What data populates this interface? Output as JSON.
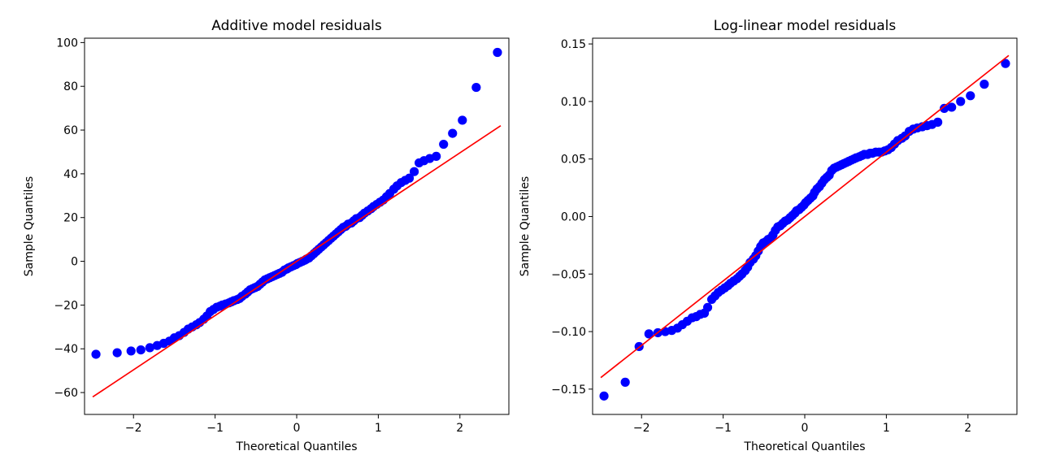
{
  "chart_data": [
    {
      "type": "scatter",
      "title": "Additive model residuals",
      "xlabel": "Theoretical Quantiles",
      "ylabel": "Sample Quantiles",
      "xlim": [
        -2.6,
        2.6
      ],
      "ylim": [
        -70,
        102
      ],
      "xticks": [
        -2,
        -1,
        0,
        1,
        2
      ],
      "xtick_labels": [
        "−2",
        "−1",
        "0",
        "1",
        "2"
      ],
      "yticks": [
        -60,
        -40,
        -20,
        0,
        20,
        40,
        60,
        80,
        100
      ],
      "ytick_labels": [
        "−60",
        "−40",
        "−20",
        "0",
        "20",
        "40",
        "60",
        "80",
        "100"
      ],
      "points": {
        "x": [
          -2.46,
          -2.2,
          -2.03,
          -1.91,
          -1.8,
          -1.71,
          -1.63,
          -1.56,
          -1.5,
          -1.44,
          -1.38,
          -1.33,
          -1.28,
          -1.23,
          -1.19,
          -1.14,
          -1.1,
          -1.06,
          -1.02,
          -0.98,
          -0.94,
          -0.91,
          -0.87,
          -0.83,
          -0.8,
          -0.77,
          -0.73,
          -0.7,
          -0.67,
          -0.63,
          -0.6,
          -0.57,
          -0.54,
          -0.51,
          -0.48,
          -0.45,
          -0.42,
          -0.39,
          -0.36,
          -0.33,
          -0.3,
          -0.27,
          -0.24,
          -0.21,
          -0.18,
          -0.15,
          -0.12,
          -0.1,
          -0.07,
          -0.04,
          -0.01,
          0.01,
          0.04,
          0.07,
          0.1,
          0.12,
          0.15,
          0.18,
          0.21,
          0.24,
          0.27,
          0.3,
          0.33,
          0.36,
          0.39,
          0.42,
          0.45,
          0.48,
          0.51,
          0.54,
          0.57,
          0.6,
          0.63,
          0.67,
          0.7,
          0.73,
          0.77,
          0.8,
          0.83,
          0.87,
          0.91,
          0.94,
          0.98,
          1.02,
          1.06,
          1.1,
          1.14,
          1.19,
          1.23,
          1.28,
          1.33,
          1.38,
          1.44,
          1.5,
          1.56,
          1.63,
          1.71,
          1.8,
          1.91,
          2.03,
          2.2,
          2.46
        ],
        "y": [
          -42.5,
          -41.8,
          -41,
          -40.5,
          -39.5,
          -38.5,
          -37.5,
          -36.5,
          -35,
          -34,
          -32.5,
          -31,
          -30,
          -29,
          -28,
          -26.5,
          -25,
          -23,
          -22,
          -21,
          -20.5,
          -20,
          -19.5,
          -19,
          -18.5,
          -18,
          -17.5,
          -17,
          -16,
          -15,
          -14,
          -13,
          -12.5,
          -12,
          -11.5,
          -10.5,
          -9.5,
          -8.5,
          -8,
          -7.5,
          -7,
          -6.5,
          -6,
          -5.5,
          -5,
          -4,
          -3.5,
          -3,
          -2.5,
          -2,
          -1.5,
          -1,
          -0.5,
          0,
          0.5,
          1,
          1.5,
          2.5,
          3.5,
          4.5,
          5.5,
          6.5,
          7.5,
          8.5,
          9.5,
          10.5,
          11.5,
          12.5,
          13.5,
          14.5,
          15.5,
          16,
          17,
          17.5,
          18.5,
          19.5,
          20,
          21,
          22,
          23,
          24,
          25,
          26,
          27,
          28,
          29.5,
          31,
          33,
          34.5,
          36,
          37,
          38,
          41,
          45,
          46,
          47,
          48,
          53.5,
          58.5,
          64.5,
          79.5,
          95.5
        ]
      },
      "reference_line": {
        "x": [
          -2.5,
          2.5
        ],
        "y": [
          -62,
          62
        ]
      },
      "marker_color": "#0000ff",
      "line_color": "#ff0000"
    },
    {
      "type": "scatter",
      "title": "Log-linear model residuals",
      "xlabel": "Theoretical Quantiles",
      "ylabel": "Sample Quantiles",
      "xlim": [
        -2.6,
        2.6
      ],
      "ylim": [
        -0.172,
        0.155
      ],
      "xticks": [
        -2,
        -1,
        0,
        1,
        2
      ],
      "xtick_labels": [
        "−2",
        "−1",
        "0",
        "1",
        "2"
      ],
      "yticks": [
        -0.15,
        -0.1,
        -0.05,
        0,
        0.05,
        0.1,
        0.15
      ],
      "ytick_labels": [
        "−0.15",
        "−0.10",
        "−0.05",
        "0.00",
        "0.05",
        "0.10",
        "0.15"
      ],
      "points": {
        "x": [
          -2.46,
          -2.2,
          -2.03,
          -1.91,
          -1.8,
          -1.71,
          -1.63,
          -1.56,
          -1.5,
          -1.44,
          -1.38,
          -1.33,
          -1.28,
          -1.23,
          -1.19,
          -1.14,
          -1.1,
          -1.06,
          -1.02,
          -0.98,
          -0.94,
          -0.91,
          -0.87,
          -0.83,
          -0.8,
          -0.77,
          -0.73,
          -0.7,
          -0.67,
          -0.63,
          -0.6,
          -0.57,
          -0.54,
          -0.51,
          -0.48,
          -0.45,
          -0.42,
          -0.39,
          -0.36,
          -0.33,
          -0.3,
          -0.27,
          -0.24,
          -0.21,
          -0.18,
          -0.15,
          -0.12,
          -0.1,
          -0.07,
          -0.04,
          -0.01,
          0.01,
          0.04,
          0.07,
          0.1,
          0.12,
          0.15,
          0.18,
          0.21,
          0.24,
          0.27,
          0.3,
          0.33,
          0.36,
          0.39,
          0.42,
          0.45,
          0.48,
          0.51,
          0.54,
          0.57,
          0.6,
          0.63,
          0.67,
          0.7,
          0.73,
          0.77,
          0.8,
          0.83,
          0.87,
          0.91,
          0.94,
          0.98,
          1.02,
          1.06,
          1.1,
          1.14,
          1.19,
          1.23,
          1.28,
          1.33,
          1.38,
          1.44,
          1.5,
          1.56,
          1.63,
          1.71,
          1.8,
          1.91,
          2.03,
          2.2,
          2.46
        ],
        "y": [
          -0.156,
          -0.144,
          -0.113,
          -0.102,
          -0.101,
          -0.1,
          -0.099,
          -0.097,
          -0.094,
          -0.091,
          -0.088,
          -0.087,
          -0.085,
          -0.084,
          -0.079,
          -0.072,
          -0.069,
          -0.066,
          -0.064,
          -0.062,
          -0.06,
          -0.058,
          -0.056,
          -0.054,
          -0.052,
          -0.05,
          -0.047,
          -0.044,
          -0.04,
          -0.037,
          -0.034,
          -0.03,
          -0.026,
          -0.023,
          -0.022,
          -0.02,
          -0.019,
          -0.016,
          -0.012,
          -0.009,
          -0.008,
          -0.006,
          -0.004,
          -0.003,
          -0.001,
          0.001,
          0.003,
          0.005,
          0.006,
          0.008,
          0.01,
          0.012,
          0.014,
          0.016,
          0.018,
          0.021,
          0.024,
          0.026,
          0.029,
          0.032,
          0.034,
          0.036,
          0.04,
          0.042,
          0.043,
          0.044,
          0.045,
          0.046,
          0.047,
          0.048,
          0.049,
          0.05,
          0.051,
          0.052,
          0.053,
          0.054,
          0.054,
          0.055,
          0.055,
          0.056,
          0.056,
          0.056,
          0.057,
          0.058,
          0.06,
          0.063,
          0.066,
          0.068,
          0.07,
          0.074,
          0.076,
          0.077,
          0.078,
          0.079,
          0.08,
          0.082,
          0.094,
          0.095,
          0.1,
          0.105,
          0.115,
          0.133
        ]
      },
      "reference_line": {
        "x": [
          -2.5,
          2.5
        ],
        "y": [
          -0.14,
          0.14
        ]
      },
      "marker_color": "#0000ff",
      "line_color": "#ff0000"
    }
  ]
}
